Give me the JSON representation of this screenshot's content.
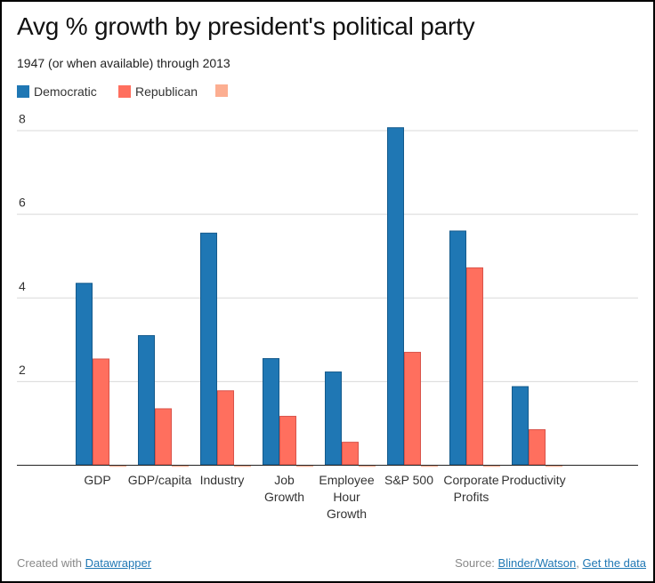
{
  "chart_data": {
    "type": "bar",
    "title": "Avg % growth by president's political party",
    "subtitle": "1947 (or when available) through 2013",
    "xlabel": "",
    "ylabel": "",
    "ylim": [
      0,
      8
    ],
    "yticks": [
      2,
      4,
      6,
      8
    ],
    "grid": true,
    "legend_placement": "top-left",
    "categories": [
      [
        "GDP"
      ],
      [
        "GDP/capita"
      ],
      [
        "Industry"
      ],
      [
        "Job",
        "Growth"
      ],
      [
        "Employee",
        "Hour",
        "Growth"
      ],
      [
        "S&P 500"
      ],
      [
        "Corporate",
        "Profits"
      ],
      [
        "Productivity"
      ]
    ],
    "category_names": [
      "GDP",
      "GDP/capita",
      "Industry",
      "Job Growth",
      "Employee Hour Growth",
      "S&P 500",
      "Corporate Profits",
      "Productivity"
    ],
    "series": [
      {
        "name": "Democratic",
        "color": "#1f77b4",
        "stroke": "#145a8c",
        "values": [
          4.35,
          3.1,
          5.55,
          2.55,
          2.23,
          8.07,
          5.6,
          1.88
        ]
      },
      {
        "name": "Republican",
        "color": "#ff6f5e",
        "stroke": "#d9534a",
        "values": [
          2.54,
          1.35,
          1.78,
          1.17,
          0.55,
          2.7,
          4.72,
          0.85
        ]
      },
      {
        "name": "",
        "color": "#fcae91",
        "stroke": "#e8907a",
        "values": [
          0,
          0,
          0,
          0,
          0,
          0,
          0,
          0
        ]
      }
    ]
  },
  "footer": {
    "created_prefix": "Created with ",
    "created_link": "Datawrapper",
    "source_prefix": "Source: ",
    "source_link": "Blinder/Watson",
    "separator": ", ",
    "data_link": "Get the data"
  }
}
